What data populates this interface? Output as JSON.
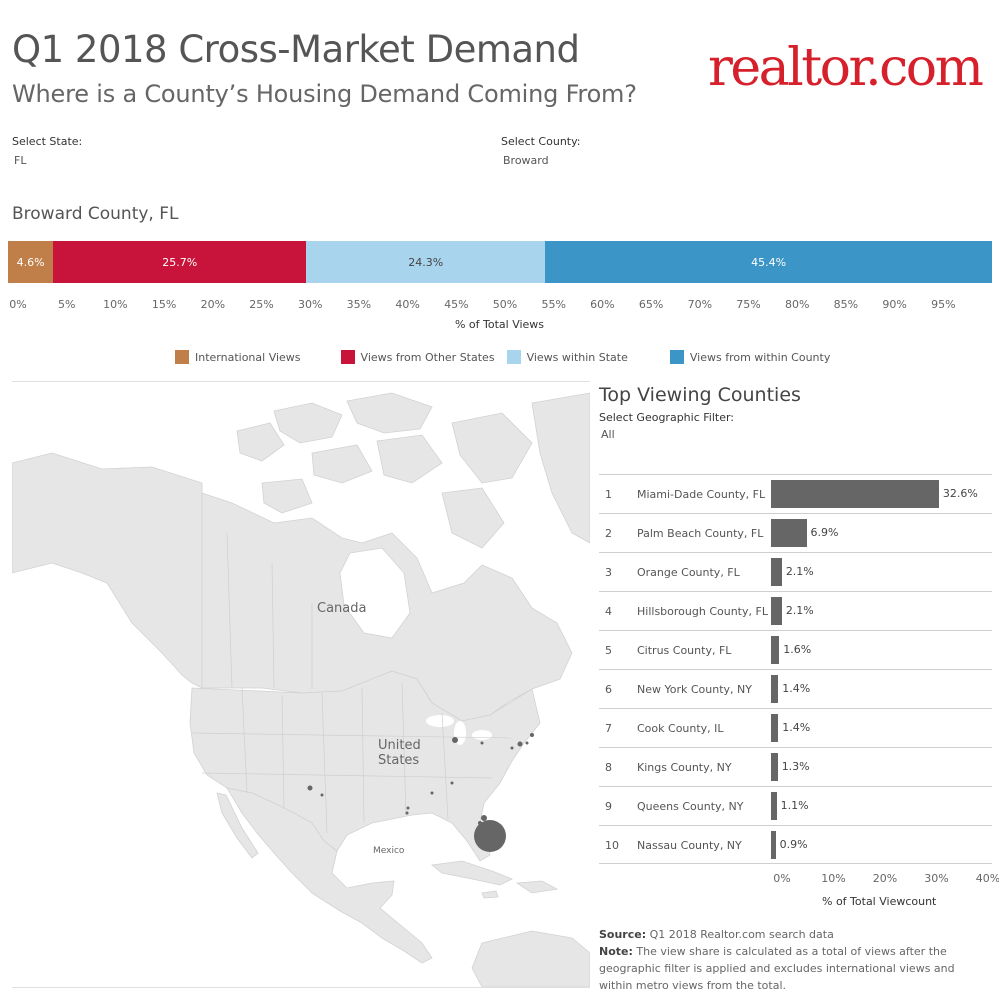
{
  "header": {
    "title": "Q1 2018 Cross-Market Demand",
    "subtitle": "Where is a County’s Housing Demand Coming From?",
    "logo_text": "realtor.com",
    "logo_color": "#d6202b"
  },
  "filters": {
    "state_label": "Select State:",
    "state_value": "FL",
    "county_label": "Select County:",
    "county_value": "Broward",
    "geo_label": "Select Geographic Filter:",
    "geo_value": "All"
  },
  "county_title": "Broward County, FL",
  "map": {
    "canada_label": "Canada",
    "us_label_1": "United",
    "us_label_2": "States",
    "mexico_label": "Mexico"
  },
  "chart_data": [
    {
      "type": "bar",
      "orientation": "horizontal-stacked",
      "title": "Broward County, FL",
      "xlabel": "% of Total Views",
      "xlim": [
        0,
        100
      ],
      "x_ticks": [
        "0%",
        "5%",
        "10%",
        "15%",
        "20%",
        "25%",
        "30%",
        "35%",
        "40%",
        "45%",
        "50%",
        "55%",
        "60%",
        "65%",
        "70%",
        "75%",
        "80%",
        "85%",
        "90%",
        "95%"
      ],
      "series": [
        {
          "name": "International Views",
          "value": 4.6,
          "label": "4.6%",
          "color": "#c07f48"
        },
        {
          "name": "Views from Other States",
          "value": 25.7,
          "label": "25.7%",
          "color": "#c8143a"
        },
        {
          "name": "Views within State",
          "value": 24.3,
          "label": "24.3%",
          "color": "#a8d4ee"
        },
        {
          "name": "Views from within County",
          "value": 45.4,
          "label": "45.4%",
          "color": "#3b95c6"
        }
      ],
      "legend": "bottom"
    },
    {
      "type": "bar",
      "orientation": "horizontal",
      "title": "Top Viewing Counties",
      "xlabel": "% of Total Viewcount",
      "xlim": [
        0,
        40
      ],
      "x_ticks": [
        "0%",
        "10%",
        "20%",
        "30%",
        "40%"
      ],
      "bar_color": "#666666",
      "rows": [
        {
          "rank": "1",
          "name": "Miami-Dade County, FL",
          "value": 32.6,
          "label": "32.6%"
        },
        {
          "rank": "2",
          "name": "Palm Beach County, FL",
          "value": 6.9,
          "label": "6.9%"
        },
        {
          "rank": "3",
          "name": "Orange County, FL",
          "value": 2.1,
          "label": "2.1%"
        },
        {
          "rank": "4",
          "name": "Hillsborough County, FL",
          "value": 2.1,
          "label": "2.1%"
        },
        {
          "rank": "5",
          "name": "Citrus County, FL",
          "value": 1.6,
          "label": "1.6%"
        },
        {
          "rank": "6",
          "name": "New York County, NY",
          "value": 1.4,
          "label": "1.4%"
        },
        {
          "rank": "7",
          "name": "Cook County, IL",
          "value": 1.4,
          "label": "1.4%"
        },
        {
          "rank": "8",
          "name": "Kings County, NY",
          "value": 1.3,
          "label": "1.3%"
        },
        {
          "rank": "9",
          "name": "Queens County, NY",
          "value": 1.1,
          "label": "1.1%"
        },
        {
          "rank": "10",
          "name": "Nassau County, NY",
          "value": 0.9,
          "label": "0.9%"
        }
      ]
    }
  ],
  "footer": {
    "source_label": "Source:",
    "source_text": " Q1 2018 Realtor.com search data",
    "note_label": "Note:",
    "note_text": " The view share is calculated as a total of views after the geographic filter is applied and excludes international views and within metro views from the total."
  }
}
